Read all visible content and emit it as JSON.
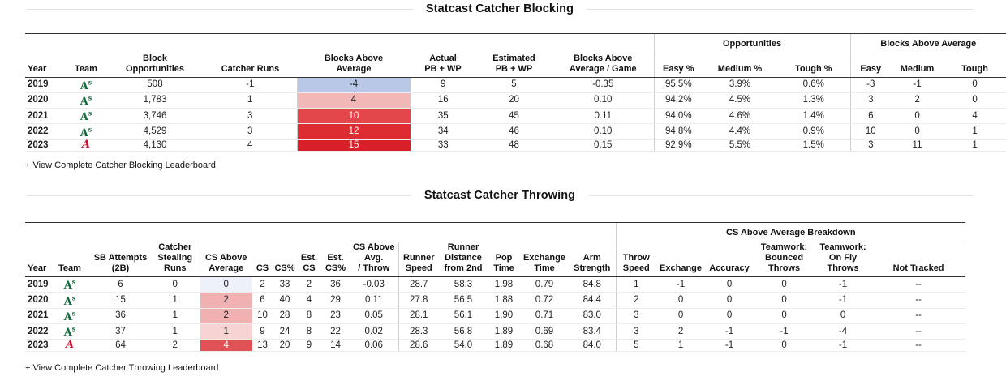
{
  "blocking": {
    "title": "Statcast Catcher Blocking",
    "group_opportunities": "Opportunities",
    "group_baa": "Blocks Above Average",
    "headers": [
      "Year",
      "Team",
      "Block\nOpportunities",
      "Catcher Runs",
      "Blocks Above\nAverage",
      "Actual\nPB + WP",
      "Estimated\nPB + WP",
      "Blocks Above\nAverage / Game",
      "Easy %",
      "Medium %",
      "Tough %",
      "Easy",
      "Medium",
      "Tough"
    ],
    "rows": [
      {
        "year": "2019",
        "team": "athletics",
        "cells": [
          "508",
          "-1",
          "-4",
          "9",
          "5",
          "-0.35",
          "95.5%",
          "3.9%",
          "0.6%",
          "-3",
          "-1",
          "0"
        ],
        "heat": "#b9c8e6",
        "heat_text": "#222"
      },
      {
        "year": "2020",
        "team": "athletics",
        "cells": [
          "1,783",
          "1",
          "4",
          "16",
          "20",
          "0.10",
          "94.2%",
          "4.5%",
          "1.3%",
          "3",
          "2",
          "0"
        ],
        "heat": "#f2b8b8",
        "heat_text": "#222"
      },
      {
        "year": "2021",
        "team": "athletics",
        "cells": [
          "3,746",
          "3",
          "10",
          "35",
          "45",
          "0.11",
          "94.0%",
          "4.6%",
          "1.4%",
          "6",
          "0",
          "4"
        ],
        "heat": "#e4474b",
        "heat_text": "#ffffff"
      },
      {
        "year": "2022",
        "team": "athletics",
        "cells": [
          "4,529",
          "3",
          "12",
          "34",
          "46",
          "0.10",
          "94.8%",
          "4.4%",
          "0.9%",
          "10",
          "0",
          "1"
        ],
        "heat": "#dd2d33",
        "heat_text": "#ffffff"
      },
      {
        "year": "2023",
        "team": "braves",
        "cells": [
          "4,130",
          "4",
          "15",
          "33",
          "48",
          "0.15",
          "92.9%",
          "5.5%",
          "1.5%",
          "3",
          "11",
          "1"
        ],
        "heat": "#d81f2a",
        "heat_text": "#ffffff"
      }
    ],
    "link": "+ View Complete Catcher Blocking Leaderboard"
  },
  "throwing": {
    "title": "Statcast Catcher Throwing",
    "group_cs": "CS Above Average Breakdown",
    "headers": [
      "Year",
      "Team",
      "SB Attempts\n(2B)",
      "Catcher\nStealing\nRuns",
      "CS Above\nAverage",
      "CS",
      "CS%",
      "Est.\nCS",
      "Est.\nCS%",
      "CS Above\nAvg.\n/ Throw",
      "Runner\nSpeed",
      "Runner\nDistance\nfrom 2nd",
      "Pop\nTime",
      "Exchange\nTime",
      "Arm\nStrength",
      "Throw\nSpeed",
      "Exchange",
      "Accuracy",
      "Teamwork:\nBounced\nThrows",
      "Teamwork:\nOn Fly\nThrows",
      "Not Tracked"
    ],
    "rows": [
      {
        "year": "2019",
        "team": "athletics",
        "cells": [
          "6",
          "0",
          "0",
          "2",
          "33",
          "2",
          "36",
          "-0.03",
          "28.7",
          "58.3",
          "1.98",
          "0.79",
          "84.8",
          "1",
          "-1",
          "0",
          "0",
          "-1",
          "--"
        ],
        "heat": "#eef0fa",
        "heat_text": "#222"
      },
      {
        "year": "2020",
        "team": "athletics",
        "cells": [
          "15",
          "1",
          "2",
          "6",
          "40",
          "4",
          "29",
          "0.11",
          "27.8",
          "56.5",
          "1.88",
          "0.72",
          "84.4",
          "2",
          "0",
          "0",
          "0",
          "-1",
          "--"
        ],
        "heat": "#f1b1b3",
        "heat_text": "#222"
      },
      {
        "year": "2021",
        "team": "athletics",
        "cells": [
          "36",
          "1",
          "2",
          "10",
          "28",
          "8",
          "23",
          "0.05",
          "28.1",
          "56.1",
          "1.90",
          "0.71",
          "83.0",
          "3",
          "0",
          "0",
          "0",
          "0",
          "--"
        ],
        "heat": "#f1b1b3",
        "heat_text": "#222"
      },
      {
        "year": "2022",
        "team": "athletics",
        "cells": [
          "37",
          "1",
          "1",
          "9",
          "24",
          "8",
          "22",
          "0.02",
          "28.3",
          "56.8",
          "1.89",
          "0.69",
          "83.4",
          "3",
          "2",
          "-1",
          "-1",
          "-4",
          "--"
        ],
        "heat": "#f7d3d4",
        "heat_text": "#222"
      },
      {
        "year": "2023",
        "team": "braves",
        "cells": [
          "64",
          "2",
          "4",
          "13",
          "20",
          "9",
          "14",
          "0.06",
          "28.6",
          "54.0",
          "1.89",
          "0.68",
          "84.0",
          "5",
          "1",
          "-1",
          "0",
          "-1",
          "--"
        ],
        "heat": "#e05256",
        "heat_text": "#ffffff"
      }
    ],
    "link": "+ View Complete Catcher Throwing Leaderboard"
  },
  "logos": {
    "athletics": {
      "icon": "athletics-logo-icon",
      "text": "A",
      "sup": "s"
    },
    "braves": {
      "icon": "braves-logo-icon",
      "text": "A",
      "sup": ""
    }
  }
}
